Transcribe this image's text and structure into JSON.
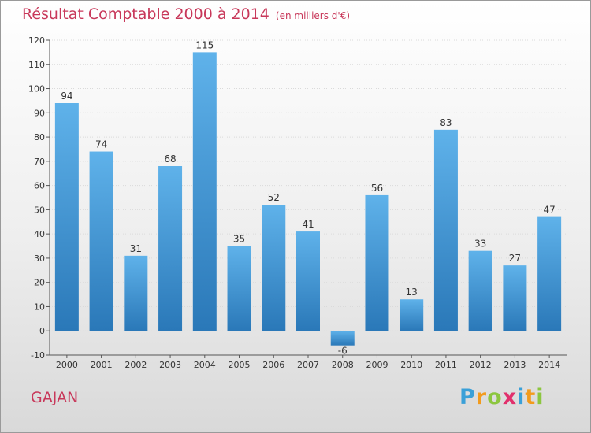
{
  "header": {
    "title": "Résultat Comptable 2000 à 2014",
    "unit": "(en milliers d'€)"
  },
  "commune": "GAJAN",
  "logo": {
    "letters": [
      "P",
      "r",
      "o",
      "x",
      "i",
      "t",
      "i"
    ],
    "colors": [
      "#3aa0d8",
      "#f29b1d",
      "#8cc63f",
      "#e1306c",
      "#3aa0d8",
      "#f29b1d",
      "#8cc63f"
    ]
  },
  "colors": {
    "bar_top": "#5fb2ea",
    "bar_bottom": "#2a78b8",
    "accent": "#c8385a",
    "grid": "#dadada"
  },
  "chart_data": {
    "type": "bar",
    "categories": [
      "2000",
      "2001",
      "2002",
      "2003",
      "2004",
      "2005",
      "2006",
      "2007",
      "2008",
      "2009",
      "2010",
      "2011",
      "2012",
      "2013",
      "2014"
    ],
    "values": [
      94,
      74,
      31,
      68,
      115,
      35,
      52,
      41,
      -6,
      56,
      13,
      83,
      33,
      27,
      47
    ],
    "value_labels": [
      "94",
      "74",
      "31",
      "68",
      "115",
      "35",
      "52",
      "41",
      "-6",
      "56",
      "13",
      "83",
      "33",
      "27",
      "47"
    ],
    "ylim": [
      -10,
      120
    ],
    "yticks": [
      -10,
      0,
      10,
      20,
      30,
      40,
      50,
      60,
      70,
      80,
      90,
      100,
      110,
      120
    ],
    "ytick_labels": [
      "-10",
      "0",
      "10",
      "20",
      "30",
      "40",
      "50",
      "60",
      "70",
      "80",
      "90",
      "100",
      "110",
      "120"
    ],
    "grid": true,
    "legend": "none"
  }
}
